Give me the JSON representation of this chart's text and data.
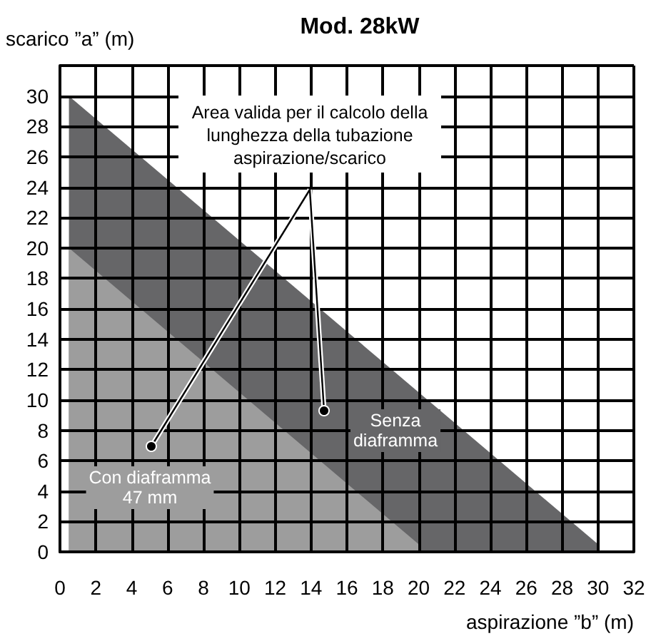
{
  "chart_data": {
    "type": "area",
    "title": "Mod. 28kW",
    "xlabel": "aspirazione ”b” (m)",
    "ylabel": "scarico ”a” (m)",
    "series": [
      {
        "color": "#666668",
        "x": [
          0.5,
          30
        ],
        "values": [
          30,
          0.5
        ]
      },
      {
        "color": "#9d9d9d",
        "x": [
          0.5,
          20
        ],
        "values": [
          20,
          0.5
        ]
      }
    ],
    "xlim": [
      0,
      32
    ],
    "xticks": [
      0,
      2,
      4,
      6,
      8,
      10,
      12,
      14,
      16,
      18,
      20,
      22,
      24,
      26,
      28,
      30,
      32
    ],
    "ylim": [
      0,
      32
    ],
    "yticks": [
      0,
      2,
      4,
      6,
      8,
      10,
      12,
      14,
      16,
      18,
      20,
      22,
      24,
      26,
      28,
      30,
      {
        "value": 32,
        "label": null
      }
    ],
    "grid": true,
    "marker": "none",
    "annotations": [
      "Area valida per il calcolo della\nlunghezza della tubazione\naspirazione/scarico",
      "Con diaframma\n47 mm",
      "Senza\ndiaframma"
    ]
  }
}
